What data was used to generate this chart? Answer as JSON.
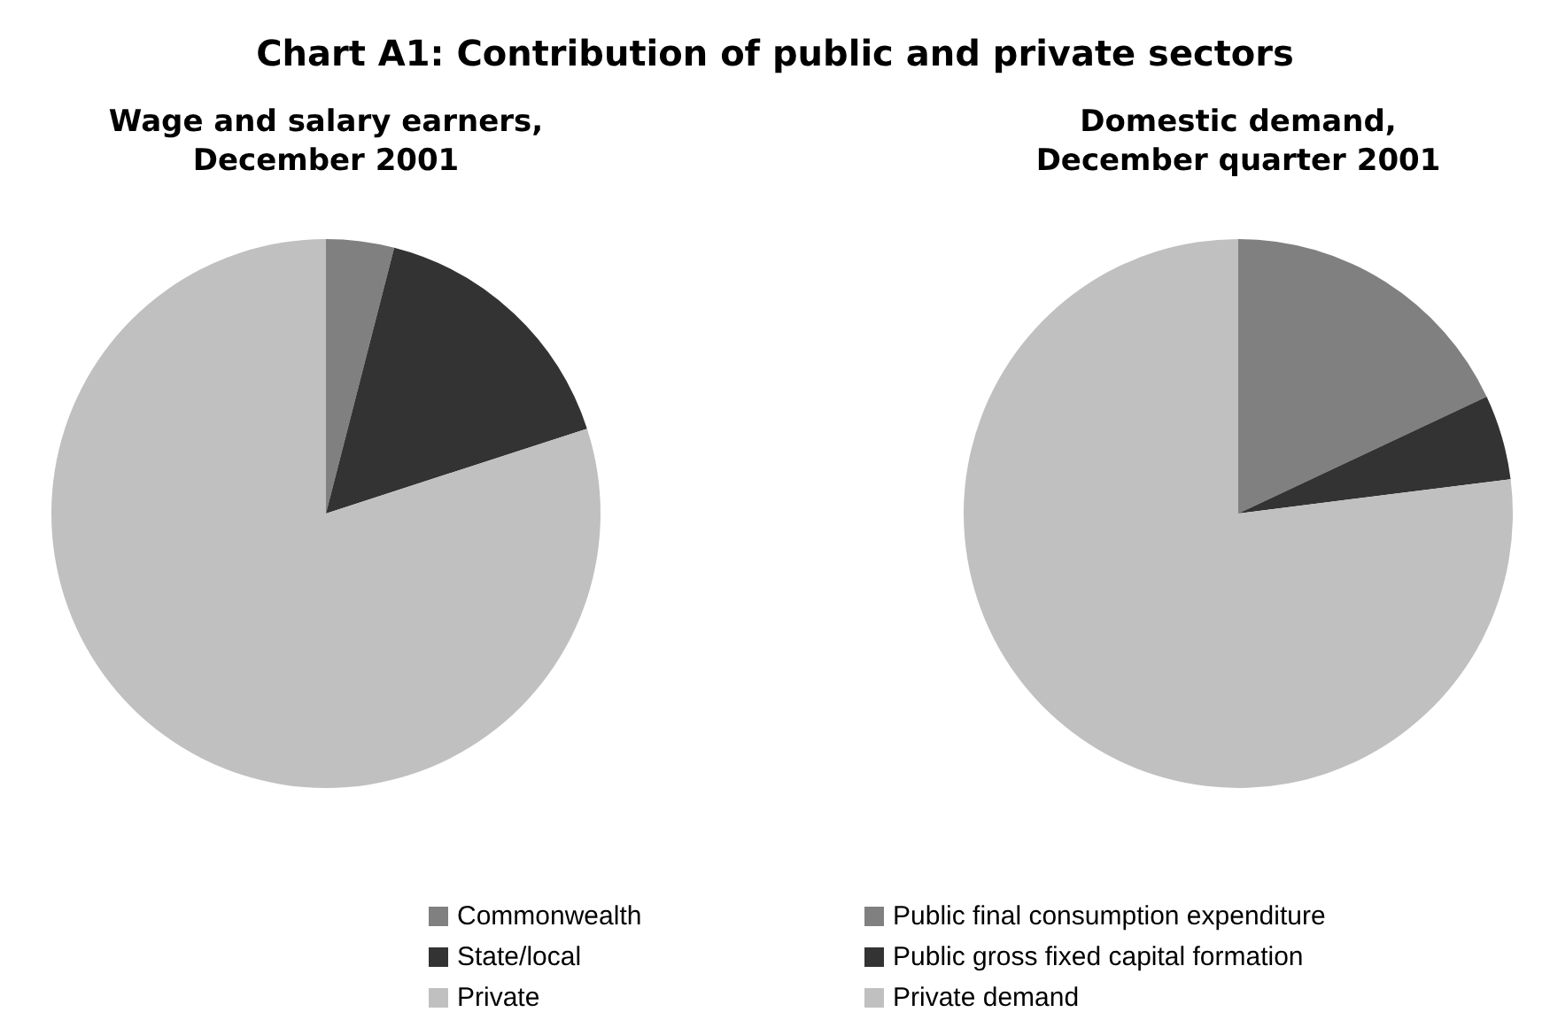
{
  "chart_data": [
    {
      "type": "pie",
      "title": "Chart A1:  Contribution of public and private sectors",
      "subtitle": "Wage and salary earners,\nDecember 2001",
      "categories": [
        "Commonwealth",
        "State/local",
        "Private"
      ],
      "values": [
        4,
        16,
        80
      ],
      "colors": [
        "#808080",
        "#333333",
        "#c0c0c0"
      ],
      "legend": "bottom"
    },
    {
      "type": "pie",
      "title": "Domestic demand,\nDecember quarter 2001",
      "categories": [
        "Public final consumption expenditure",
        "Public gross fixed capital formation",
        "Private demand"
      ],
      "values": [
        18,
        5,
        77
      ],
      "colors": [
        "#808080",
        "#333333",
        "#c0c0c0"
      ],
      "legend": "bottom"
    }
  ]
}
